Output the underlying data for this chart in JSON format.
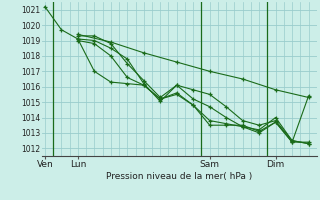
{
  "bg_color": "#cceee8",
  "grid_color": "#99cccc",
  "line_color": "#1a6b1a",
  "title": "Pression niveau de la mer( hPa )",
  "ylim": [
    1011.5,
    1021.5
  ],
  "yticks": [
    1012,
    1013,
    1014,
    1015,
    1016,
    1017,
    1018,
    1019,
    1020,
    1021
  ],
  "xtick_labels": [
    "Ven",
    "Lun",
    "Sam",
    "Dim"
  ],
  "xtick_positions": [
    0,
    2,
    10,
    14
  ],
  "xlim": [
    -0.2,
    16.5
  ],
  "lines": [
    {
      "x": [
        0,
        1,
        2,
        3,
        4,
        5,
        6,
        7,
        8,
        9,
        10,
        11,
        12,
        13,
        14,
        15,
        16
      ],
      "y": [
        1021.2,
        1019.7,
        1019.1,
        1019.0,
        1018.5,
        1017.8,
        1016.2,
        1015.05,
        1016.1,
        1015.8,
        1015.5,
        1014.7,
        1013.8,
        1013.5,
        1013.8,
        1012.5,
        1012.3
      ]
    },
    {
      "x": [
        2,
        3,
        4,
        5,
        6,
        7,
        8,
        9,
        10,
        11,
        12,
        13,
        14,
        15,
        16
      ],
      "y": [
        1019.3,
        1019.3,
        1018.8,
        1017.5,
        1016.4,
        1015.3,
        1016.1,
        1015.2,
        1014.7,
        1014.0,
        1013.4,
        1013.2,
        1014.0,
        1012.5,
        1012.3
      ]
    },
    {
      "x": [
        2,
        3,
        4,
        5,
        6,
        7,
        8,
        9,
        10,
        11,
        12,
        13,
        14,
        15,
        16
      ],
      "y": [
        1019.0,
        1018.8,
        1018.0,
        1016.6,
        1016.1,
        1015.2,
        1015.5,
        1014.8,
        1013.8,
        1013.6,
        1013.4,
        1013.0,
        1013.7,
        1012.4,
        1012.4
      ]
    },
    {
      "x": [
        2,
        4,
        6,
        8,
        10,
        12,
        14,
        16
      ],
      "y": [
        1019.4,
        1018.9,
        1018.2,
        1017.6,
        1017.0,
        1016.5,
        1015.8,
        1015.3
      ]
    },
    {
      "x": [
        2,
        3,
        4,
        5,
        6,
        7,
        8,
        9,
        10,
        11,
        12,
        13,
        14,
        15,
        16
      ],
      "y": [
        1019.1,
        1017.0,
        1016.3,
        1016.2,
        1016.1,
        1015.2,
        1015.6,
        1014.8,
        1013.5,
        1013.5,
        1013.5,
        1013.1,
        1013.7,
        1012.4,
        1015.4
      ]
    }
  ],
  "vline_positions": [
    0.5,
    9.5,
    13.5
  ],
  "grid_x_step": 0.5
}
